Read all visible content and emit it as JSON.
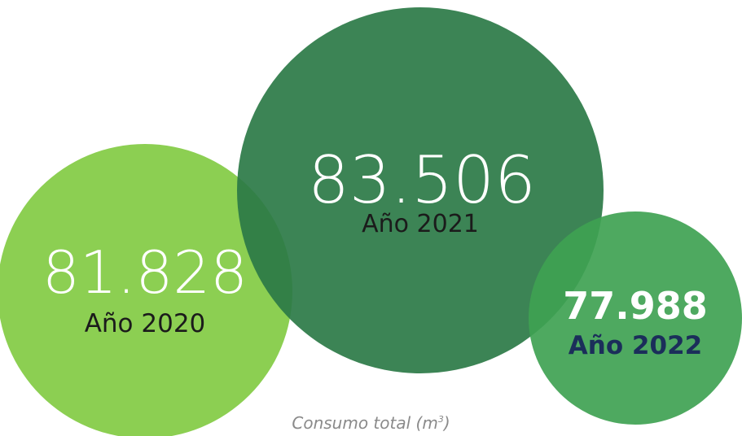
{
  "chart_data": {
    "type": "bubble",
    "title": "",
    "caption": {
      "text": "Consumo total (m",
      "superscript": "3",
      "suffix": ")"
    },
    "series": [
      {
        "label": "Año 2020",
        "value": 81828,
        "display": "81.828",
        "color": "#8ccf52"
      },
      {
        "label": "Año 2021",
        "value": 83506,
        "display": "83.506",
        "color": "#2b7a47"
      },
      {
        "label": "Año 2022",
        "value": 77988,
        "display": "77.988",
        "color": "#3fa252"
      }
    ]
  }
}
